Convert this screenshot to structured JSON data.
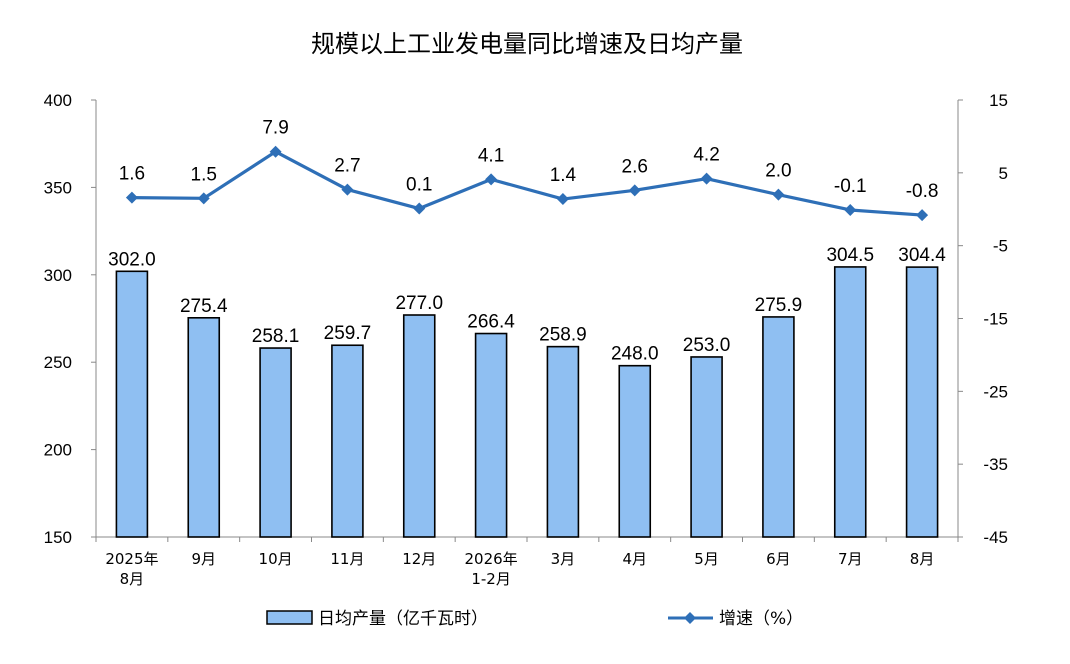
{
  "chart_data": {
    "type": "bar",
    "title": "规模以上工业发电量同比增速及日均产量",
    "categories": [
      [
        "2025年",
        "8月"
      ],
      [
        "9月"
      ],
      [
        "10月"
      ],
      [
        "11月"
      ],
      [
        "12月"
      ],
      [
        "2026年",
        "1-2月"
      ],
      [
        "3月"
      ],
      [
        "4月"
      ],
      [
        "5月"
      ],
      [
        "6月"
      ],
      [
        "7月"
      ],
      [
        "8月"
      ]
    ],
    "series": [
      {
        "name": "日均产量（亿千瓦时）",
        "type": "bar",
        "axis": "left",
        "color": "#8fbff2",
        "values": [
          302.0,
          275.4,
          258.1,
          259.7,
          277.0,
          266.4,
          258.9,
          248.0,
          253.0,
          275.9,
          304.5,
          304.4
        ],
        "labels": [
          "302.0",
          "275.4",
          "258.1",
          "259.7",
          "277.0",
          "266.4",
          "258.9",
          "248.0",
          "253.0",
          "275.9",
          "304.5",
          "304.4"
        ]
      },
      {
        "name": "增速（%）",
        "type": "line",
        "axis": "right",
        "color": "#2e6fb7",
        "values": [
          1.6,
          1.5,
          7.9,
          2.7,
          0.1,
          4.1,
          1.4,
          2.6,
          4.2,
          2.0,
          -0.1,
          -0.8
        ],
        "labels": [
          "1.6",
          "1.5",
          "7.9",
          "2.7",
          "0.1",
          "4.1",
          "1.4",
          "2.6",
          "4.2",
          "2.0",
          "-0.1",
          "-0.8"
        ]
      }
    ],
    "y_left": {
      "min": 150,
      "max": 400,
      "ticks": [
        "400",
        "350",
        "300",
        "250",
        "200",
        "150"
      ]
    },
    "y_right": {
      "min": -45,
      "max": 15,
      "ticks": [
        "15",
        "5",
        "-5",
        "-15",
        "-25",
        "-35",
        "-45"
      ]
    },
    "grid": false,
    "legend_position": "bottom"
  }
}
